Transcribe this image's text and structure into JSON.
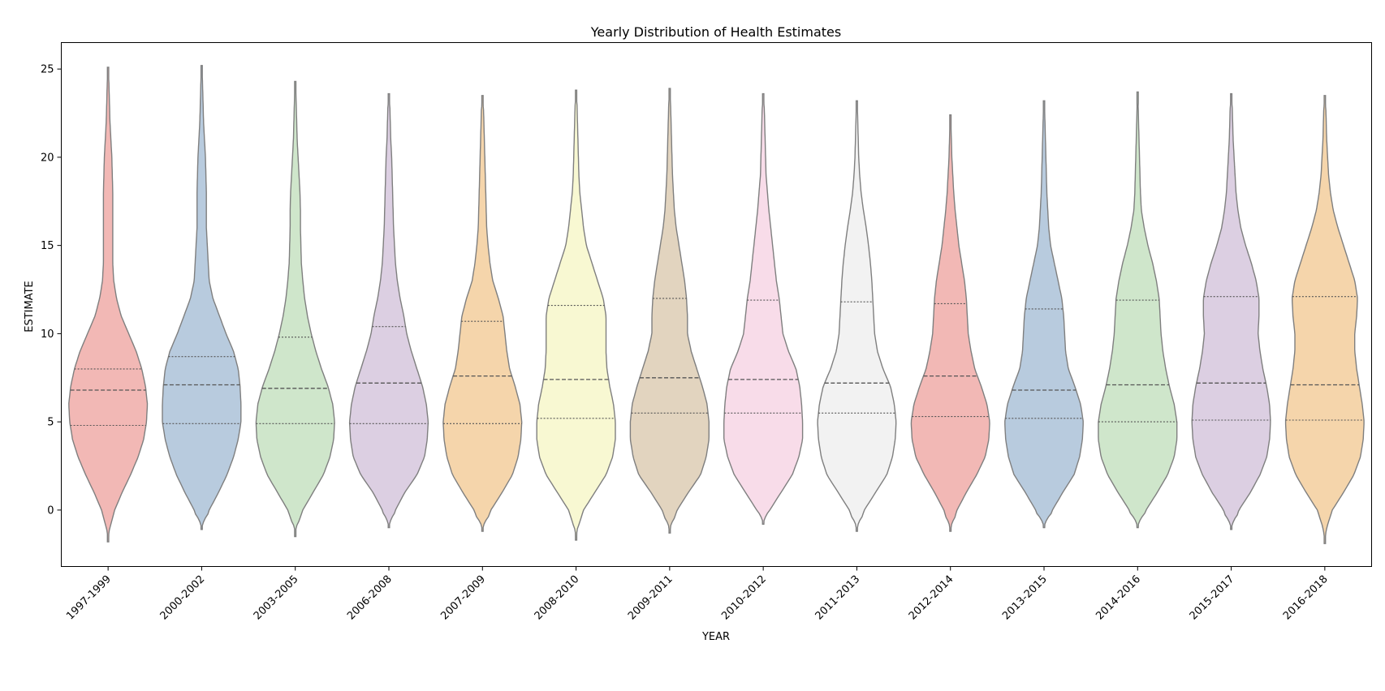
{
  "chart_data": {
    "type": "violin",
    "title": "Yearly Distribution of Health Estimates",
    "xlabel": "YEAR",
    "ylabel": "ESTIMATE",
    "ylim": [
      -3.2,
      26.5
    ],
    "yticks": [
      0,
      5,
      10,
      15,
      20,
      25
    ],
    "grid": false,
    "legend": "none",
    "edge_color": "#7f7f7f",
    "colors": [
      "#f2b8b5",
      "#b8cbde",
      "#cfe6cb",
      "#dccfe2",
      "#f5d5ab",
      "#f8f8d2",
      "#e2d4bf",
      "#f8dce9",
      "#f2f2f2",
      "#f2b8b5",
      "#b8cbde",
      "#cfe6cb",
      "#dccfe2",
      "#f5d5ab"
    ],
    "categories": [
      "1997-1999",
      "2000-2002",
      "2003-2005",
      "2006-2008",
      "2007-2009",
      "2008-2010",
      "2009-2011",
      "2010-2012",
      "2011-2013",
      "2012-2014",
      "2013-2015",
      "2014-2016",
      "2015-2017",
      "2016-2018"
    ],
    "ticks": [
      {
        "min": -1.8,
        "max": 25.1
      },
      {
        "min": -1.1,
        "max": 25.2
      },
      {
        "min": -1.5,
        "max": 24.3
      },
      {
        "min": -1.0,
        "max": 23.6
      },
      {
        "min": -1.2,
        "max": 23.5
      },
      {
        "min": -1.7,
        "max": 23.8
      },
      {
        "min": -1.3,
        "max": 23.9
      },
      {
        "min": -0.8,
        "max": 23.6
      },
      {
        "min": -1.2,
        "max": 23.2
      },
      {
        "min": -1.2,
        "max": 22.4
      },
      {
        "min": -1.0,
        "max": 23.2
      },
      {
        "min": -1.0,
        "max": 23.7
      },
      {
        "min": -1.1,
        "max": 23.6
      },
      {
        "min": -1.9,
        "max": 23.5
      }
    ],
    "quartiles": [
      [
        4.8,
        6.8,
        8.0
      ],
      [
        4.9,
        7.1,
        8.7
      ],
      [
        4.9,
        6.9,
        9.8
      ],
      [
        4.9,
        7.2,
        10.4
      ],
      [
        4.9,
        7.6,
        10.7
      ],
      [
        5.2,
        7.4,
        11.6
      ],
      [
        5.5,
        7.5,
        12.0
      ],
      [
        5.5,
        7.4,
        11.9
      ],
      [
        5.5,
        7.2,
        11.8
      ],
      [
        5.3,
        7.6,
        11.7
      ],
      [
        5.2,
        6.8,
        11.4
      ],
      [
        5.0,
        7.1,
        11.9
      ],
      [
        5.1,
        7.2,
        12.1
      ],
      [
        5.1,
        7.1,
        12.1
      ]
    ],
    "density_y": [
      -3,
      -2,
      -1,
      0,
      1,
      2,
      3,
      4,
      5,
      6,
      7,
      8,
      9,
      10,
      11,
      12,
      13,
      14,
      15,
      16,
      17,
      18,
      19,
      20,
      21,
      22,
      23,
      24,
      25,
      26
    ],
    "density_halfwidth": [
      [
        0,
        0.5,
        2,
        7,
        15,
        24,
        32,
        38,
        41,
        42,
        40,
        36,
        30,
        22,
        14,
        9,
        6,
        5,
        5,
        5,
        5,
        5,
        4.5,
        4,
        3,
        2,
        1.5,
        1,
        0.5,
        0
      ],
      [
        0,
        0,
        2,
        8,
        18,
        27,
        34,
        39,
        42,
        42,
        41,
        39,
        34,
        26,
        19,
        12,
        8,
        7,
        6,
        5,
        5,
        5,
        4.5,
        4,
        3,
        2,
        1.5,
        1,
        0.5,
        0
      ],
      [
        0,
        0,
        1.5,
        8,
        19,
        30,
        37,
        41,
        42,
        40,
        35,
        28,
        22,
        17,
        13,
        10,
        8,
        6.5,
        6,
        5.5,
        5.5,
        5,
        4,
        3,
        2,
        1.5,
        1,
        0.5,
        0,
        0
      ],
      [
        0,
        0,
        1.5,
        7,
        17,
        30,
        38,
        41,
        42,
        40,
        36,
        30,
        24,
        19,
        16,
        12,
        9,
        7,
        6,
        5,
        4.5,
        4,
        3.5,
        3,
        2,
        1.5,
        1,
        0,
        0,
        0
      ],
      [
        0,
        0,
        2,
        9,
        21,
        32,
        38,
        41,
        42,
        40,
        35,
        29,
        26,
        24,
        22,
        17,
        11,
        8,
        6,
        4.5,
        4,
        3.5,
        3,
        2.5,
        2,
        1.5,
        1,
        0,
        0,
        0
      ],
      [
        0,
        0.5,
        2,
        8,
        20,
        32,
        39,
        42,
        42,
        40,
        36,
        33,
        32,
        32,
        32,
        29,
        23,
        17,
        11,
        8,
        6,
        4,
        3,
        2.5,
        2,
        1.5,
        1,
        0,
        0,
        0
      ],
      [
        0,
        0,
        1.5,
        8,
        20,
        33,
        39,
        42,
        42,
        40,
        35,
        29,
        23,
        19,
        19,
        18,
        16,
        13,
        10,
        7,
        5,
        4,
        3,
        2.5,
        2,
        1.5,
        1,
        0,
        0,
        0
      ],
      [
        0,
        0,
        1,
        7,
        19,
        31,
        38,
        42,
        42,
        41,
        39,
        35,
        27,
        21,
        19,
        17,
        14,
        12,
        10,
        8,
        6,
        4.5,
        3,
        2.5,
        2,
        1.5,
        1,
        0,
        0,
        0
      ],
      [
        0,
        0,
        1.5,
        8,
        20,
        32,
        38,
        41,
        42,
        40,
        36,
        28,
        22,
        19,
        18,
        17,
        16,
        14.5,
        12.5,
        10,
        7,
        4.5,
        3,
        2,
        1.5,
        1,
        0.5,
        0,
        0,
        0
      ],
      [
        0,
        0,
        1.5,
        7,
        17,
        28,
        37,
        41,
        42,
        39,
        33,
        26,
        22,
        19,
        18,
        17,
        15,
        12,
        9,
        7,
        5,
        3.5,
        2.5,
        1.5,
        1,
        0.5,
        0,
        0,
        0,
        0
      ],
      [
        0,
        0,
        2,
        9,
        20,
        32,
        38,
        41,
        42,
        39,
        33,
        26,
        23,
        22,
        21,
        19,
        15,
        11,
        7,
        5,
        4,
        3,
        2.5,
        2,
        1.5,
        1,
        0.5,
        0,
        0,
        0
      ],
      [
        0,
        0,
        2,
        9,
        21,
        32,
        39,
        42,
        42,
        39,
        34,
        30,
        27,
        25,
        24,
        23,
        20,
        16,
        11,
        7,
        4,
        3,
        2.5,
        2,
        1.5,
        1,
        0.5,
        0,
        0,
        0
      ],
      [
        0,
        0,
        2,
        8,
        20,
        30,
        37,
        40,
        41,
        40,
        37,
        33,
        30,
        28,
        29,
        29,
        26,
        21,
        15,
        10,
        7,
        5,
        4,
        3,
        2,
        1.5,
        1,
        0,
        0,
        0
      ],
      [
        0,
        0.5,
        2,
        8,
        20,
        31,
        38,
        41,
        42,
        40,
        37,
        34,
        32,
        32,
        34,
        35,
        32,
        26,
        20,
        14,
        9,
        6,
        4,
        3,
        2,
        1.5,
        1,
        0,
        0,
        0
      ]
    ]
  }
}
